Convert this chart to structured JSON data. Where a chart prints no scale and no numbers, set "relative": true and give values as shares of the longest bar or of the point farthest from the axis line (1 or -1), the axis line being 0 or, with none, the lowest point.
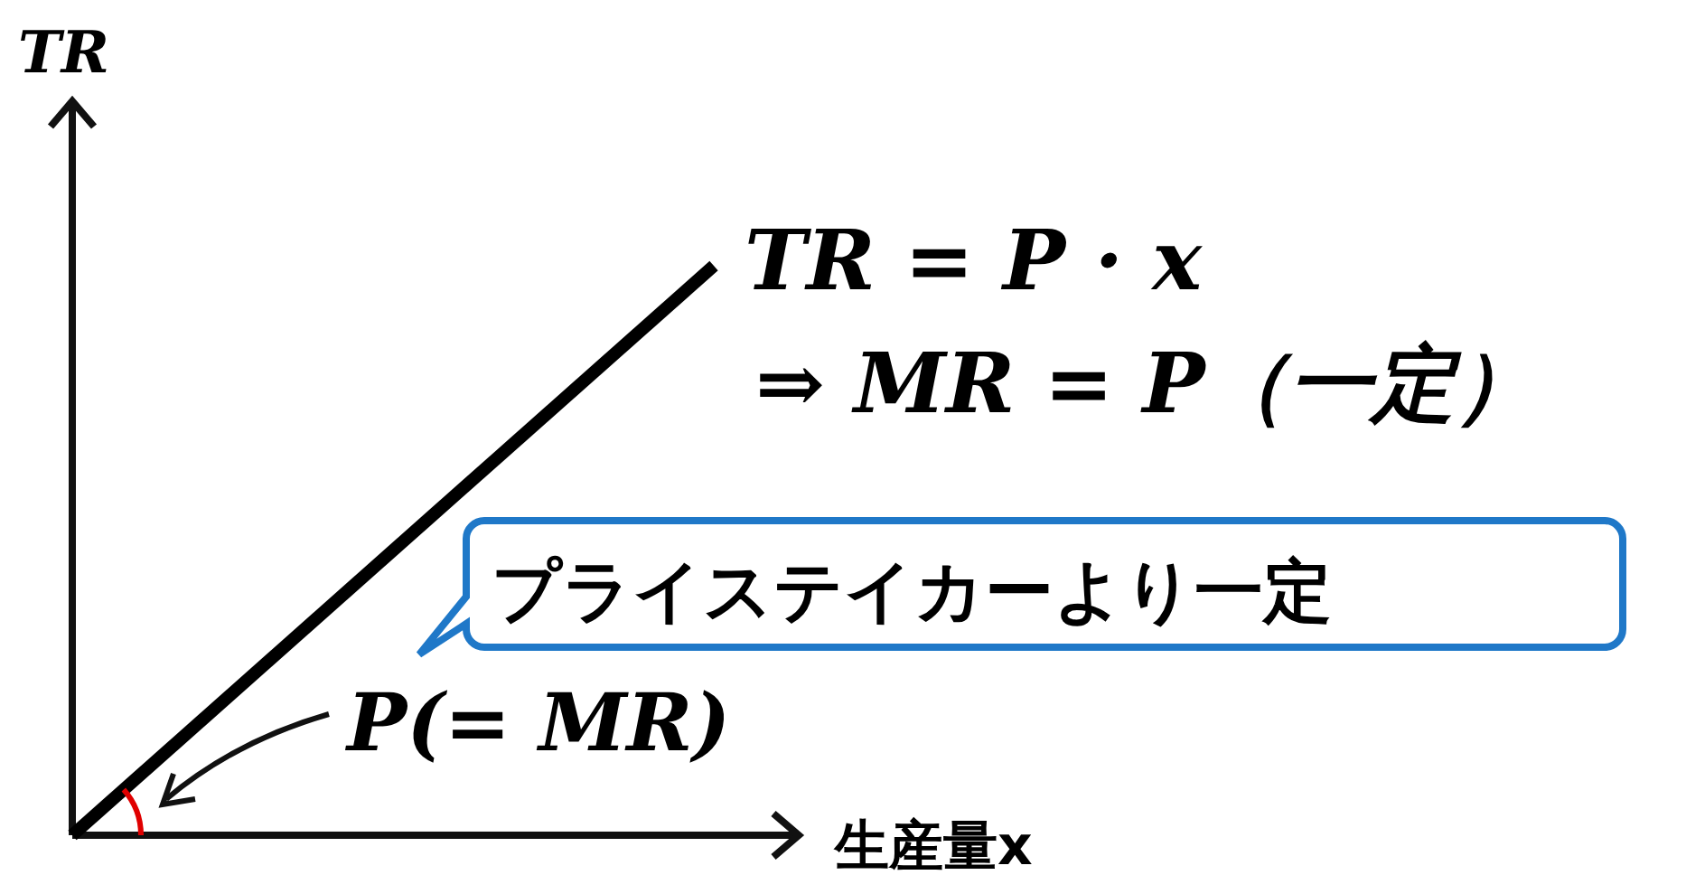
{
  "chart_data": {
    "type": "line",
    "relative": true,
    "ylabel": "TR",
    "xlabel": "生産量x",
    "categories": [
      null,
      null
    ],
    "series": [
      {
        "color": "#000000",
        "values": [
          0,
          1
        ]
      }
    ],
    "annotations": [
      "TR = P · x",
      "⇒ MR = P（一定）",
      "プライステイカーより一定",
      "P(= MR)"
    ]
  }
}
